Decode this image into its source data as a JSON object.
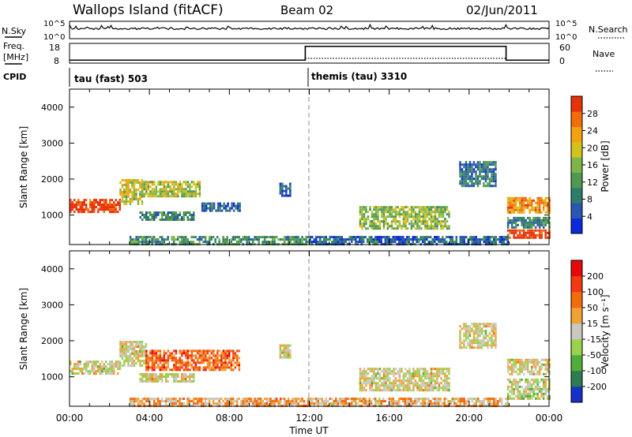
{
  "header": {
    "title": "Wallops Island (fitACF)",
    "beam": "Beam 02",
    "date": "02/Jun/2011"
  },
  "top_panels": {
    "nsky_label": "N.Sky",
    "nsky_ticks": [
      "10^5",
      "10^0"
    ],
    "nsearch_label": "N.Search",
    "nsearch_ticks": [
      "10^5",
      "10^0"
    ],
    "freq_label_1": "Freq.",
    "freq_label_2": "[MHz]",
    "freq_ticks": [
      "18",
      "8"
    ],
    "nave_label": "Nave",
    "nave_ticks": [
      "60",
      "0"
    ],
    "cpid_label": "CPID",
    "cpid_segments": [
      {
        "label": "tau (fast) 503",
        "start_h": 0
      },
      {
        "label": "themis (tau) 3310",
        "start_h": 12
      }
    ],
    "freq_step": {
      "before": 9.5,
      "after": 16.5,
      "switch_h": 11.8,
      "drop_h": 21.85
    }
  },
  "chart_data": [
    {
      "type": "heatmap",
      "name": "power",
      "ylabel": "Slant Range [km]",
      "yticks": [
        "4000",
        "3000",
        "2000",
        "1000"
      ],
      "ylim": [
        180,
        4500
      ],
      "xlim": [
        0,
        24
      ],
      "colorbar_label": "Power [dB]",
      "colorbar_ticks": [
        "28",
        "24",
        "20",
        "16",
        "12",
        "8",
        "4"
      ],
      "colorbar_colors": [
        "#0a2bd8",
        "#2a55b0",
        "#2f7c6a",
        "#4f9a4e",
        "#7eb54a",
        "#d2c21c",
        "#f3a10e",
        "#f36c0b",
        "#e7320a"
      ],
      "echo_regions": [
        {
          "t0": 0.0,
          "t1": 2.5,
          "r0": 1100,
          "r1": 1450,
          "level": 0.95
        },
        {
          "t0": 2.5,
          "t1": 3.6,
          "r0": 1300,
          "r1": 2000,
          "level": 0.6
        },
        {
          "t0": 3.6,
          "t1": 6.5,
          "r0": 1500,
          "r1": 1950,
          "level": 0.55
        },
        {
          "t0": 6.5,
          "t1": 8.5,
          "r0": 1150,
          "r1": 1350,
          "level": 0.2
        },
        {
          "t0": 3.5,
          "t1": 6.2,
          "r0": 850,
          "r1": 1100,
          "level": 0.3
        },
        {
          "t0": 10.5,
          "t1": 11.0,
          "r0": 1550,
          "r1": 1900,
          "level": 0.15
        },
        {
          "t0": 14.5,
          "t1": 19.0,
          "r0": 650,
          "r1": 1250,
          "level": 0.5
        },
        {
          "t0": 19.5,
          "t1": 21.3,
          "r0": 1800,
          "r1": 2500,
          "level": 0.25
        },
        {
          "t0": 21.9,
          "t1": 24.0,
          "r0": 1100,
          "r1": 1500,
          "level": 0.75
        },
        {
          "t0": 21.9,
          "t1": 24.0,
          "r0": 380,
          "r1": 600,
          "level": 1.0
        },
        {
          "t0": 21.9,
          "t1": 24.0,
          "r0": 650,
          "r1": 950,
          "level": 0.3
        },
        {
          "t0": 3.0,
          "t1": 12.0,
          "r0": 200,
          "r1": 420,
          "level": 0.35
        },
        {
          "t0": 12.0,
          "t1": 21.9,
          "r0": 200,
          "r1": 420,
          "level": 0.2
        }
      ]
    },
    {
      "type": "heatmap",
      "name": "velocity",
      "ylabel": "Slant Range [km]",
      "yticks": [
        "4000",
        "3000",
        "2000",
        "1000"
      ],
      "ylim": [
        180,
        4500
      ],
      "xlim": [
        0,
        24
      ],
      "xticks": [
        "00:00",
        "04:00",
        "08:00",
        "12:00",
        "16:00",
        "20:00",
        "00:00"
      ],
      "xlabel": "Time UT",
      "colorbar_label": "Velocity [m s⁻¹]",
      "colorbar_ticks": [
        "200",
        "100",
        "50",
        "15",
        "-15",
        "-50",
        "-100",
        "-200"
      ],
      "colorbar_colors": [
        "#1730c8",
        "#2f7a4e",
        "#4fae3a",
        "#9ad24e",
        "#c8c8c0",
        "#f0a238",
        "#f36c0b",
        "#f23a12",
        "#e40a0a"
      ],
      "echo_regions": [
        {
          "t0": 0.0,
          "t1": 2.5,
          "r0": 1100,
          "r1": 1450,
          "level": 0.5
        },
        {
          "t0": 2.5,
          "t1": 3.8,
          "r0": 1300,
          "r1": 2000,
          "level": 0.5
        },
        {
          "t0": 3.8,
          "t1": 8.5,
          "r0": 1200,
          "r1": 1750,
          "level": 0.75
        },
        {
          "t0": 3.5,
          "t1": 6.2,
          "r0": 850,
          "r1": 1100,
          "level": 0.5
        },
        {
          "t0": 10.5,
          "t1": 11.0,
          "r0": 1550,
          "r1": 1900,
          "level": 0.5
        },
        {
          "t0": 14.5,
          "t1": 19.0,
          "r0": 650,
          "r1": 1250,
          "level": 0.5
        },
        {
          "t0": 19.5,
          "t1": 21.3,
          "r0": 1800,
          "r1": 2500,
          "level": 0.5
        },
        {
          "t0": 21.9,
          "t1": 24.0,
          "r0": 1100,
          "r1": 1500,
          "level": 0.5
        },
        {
          "t0": 21.9,
          "t1": 24.0,
          "r0": 380,
          "r1": 950,
          "level": 0.45
        },
        {
          "t0": 3.0,
          "t1": 12.0,
          "r0": 200,
          "r1": 420,
          "level": 0.62
        },
        {
          "t0": 12.0,
          "t1": 21.9,
          "r0": 200,
          "r1": 420,
          "level": 0.6
        }
      ]
    }
  ]
}
